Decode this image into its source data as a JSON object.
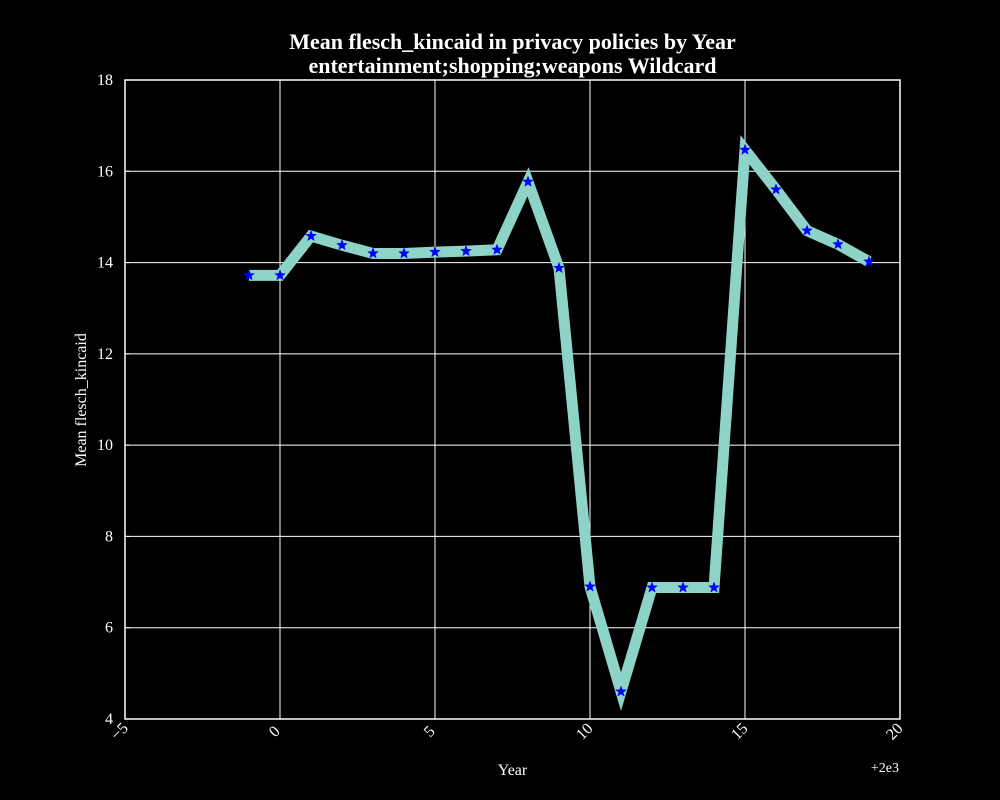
{
  "chart_data": {
    "type": "line",
    "title": "Mean flesch_kincaid in privacy policies by Year",
    "subtitle": "entertainment;shopping;weapons Wildcard",
    "xlabel": "Year",
    "ylabel": "Mean flesch_kincaid",
    "x_offset_label": "+2e3",
    "xlim": [
      -5,
      20
    ],
    "ylim": [
      4,
      18
    ],
    "x_ticks": [
      -5,
      0,
      5,
      10,
      15,
      20
    ],
    "y_ticks": [
      4,
      6,
      8,
      10,
      12,
      14,
      16,
      18
    ],
    "grid": true,
    "background": "#000000",
    "foreground": "#ffffff",
    "line_color": "#8dd3c7",
    "marker_color": "#0000ff",
    "marker": "star",
    "series": [
      {
        "x": [
          -1,
          0,
          1,
          2,
          3,
          4,
          5,
          6,
          7,
          8,
          9,
          10,
          11,
          12,
          13,
          14,
          15,
          16,
          17,
          18,
          19
        ],
        "values": [
          13.72,
          13.72,
          14.58,
          14.38,
          14.2,
          14.2,
          14.23,
          14.25,
          14.28,
          15.77,
          13.88,
          6.9,
          4.6,
          6.88,
          6.88,
          6.88,
          16.47,
          15.6,
          14.7,
          14.4,
          14.02
        ]
      }
    ]
  }
}
